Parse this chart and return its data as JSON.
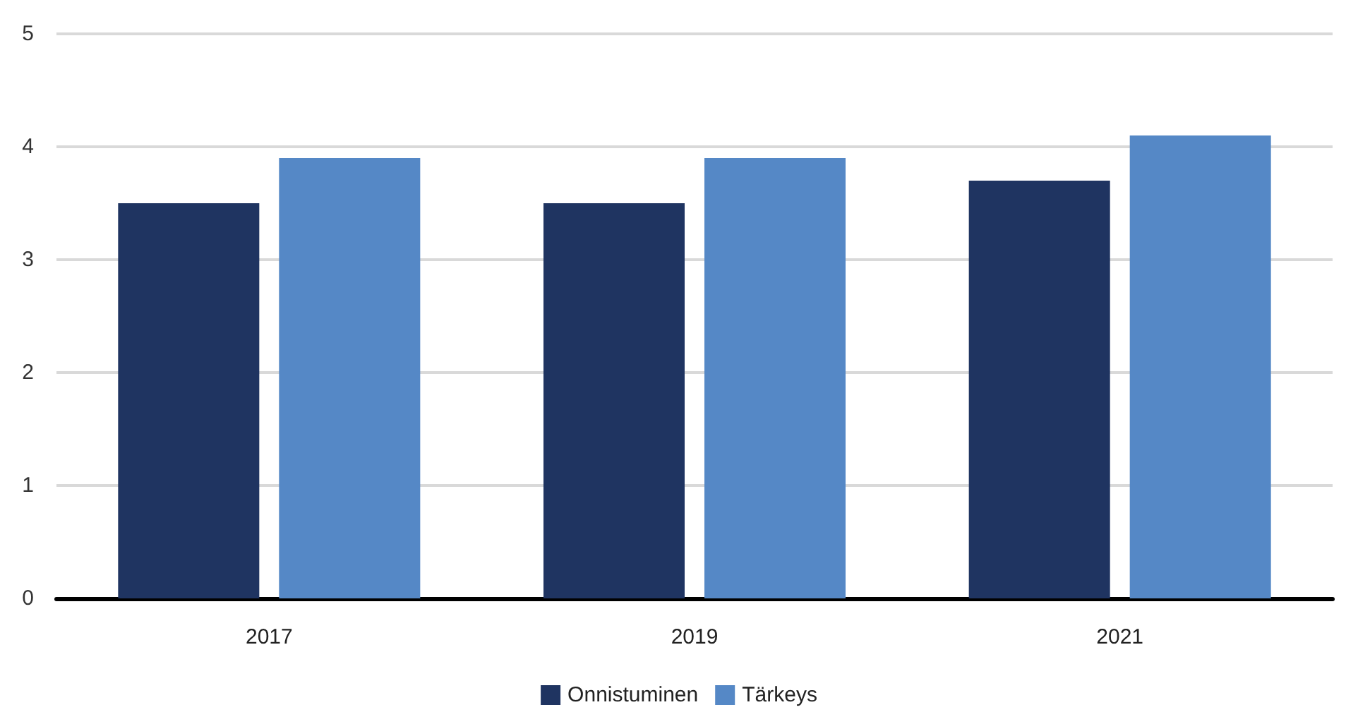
{
  "chart_data": {
    "type": "bar",
    "categories": [
      "2017",
      "2019",
      "2021"
    ],
    "series": [
      {
        "name": "Onnistuminen",
        "color": "#1f3461",
        "values": [
          3.5,
          3.5,
          3.7
        ]
      },
      {
        "name": "Tärkeys",
        "color": "#5588c6",
        "values": [
          3.9,
          3.9,
          4.1
        ]
      }
    ],
    "ylim": [
      0,
      5
    ],
    "yticks": [
      0,
      1,
      2,
      3,
      4,
      5
    ],
    "grid": "y",
    "legend": "bottom"
  }
}
